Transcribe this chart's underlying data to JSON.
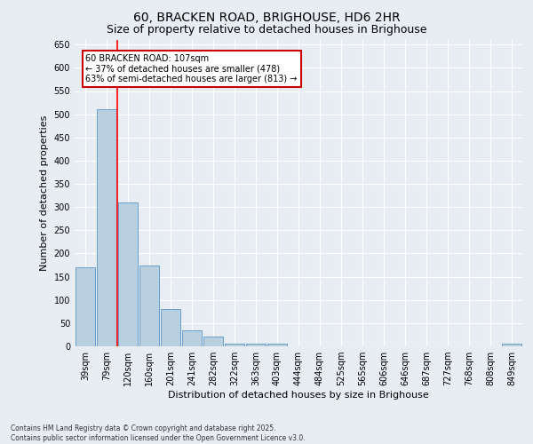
{
  "title1": "60, BRACKEN ROAD, BRIGHOUSE, HD6 2HR",
  "title2": "Size of property relative to detached houses in Brighouse",
  "xlabel": "Distribution of detached houses by size in Brighouse",
  "ylabel": "Number of detached properties",
  "categories": [
    "39sqm",
    "79sqm",
    "120sqm",
    "160sqm",
    "201sqm",
    "241sqm",
    "282sqm",
    "322sqm",
    "363sqm",
    "403sqm",
    "444sqm",
    "484sqm",
    "525sqm",
    "565sqm",
    "606sqm",
    "646sqm",
    "687sqm",
    "727sqm",
    "768sqm",
    "808sqm",
    "849sqm"
  ],
  "values": [
    170,
    510,
    310,
    175,
    80,
    35,
    22,
    5,
    5,
    5,
    0,
    0,
    0,
    0,
    0,
    0,
    0,
    0,
    0,
    0,
    5
  ],
  "bar_color": "#b8cfe0",
  "bar_edge_color": "#6a9fca",
  "background_color": "#e8edf4",
  "grid_color": "#ffffff",
  "red_line_x": 1.5,
  "annotation_text": "60 BRACKEN ROAD: 107sqm\n← 37% of detached houses are smaller (478)\n63% of semi-detached houses are larger (813) →",
  "annotation_box_color": "#ffffff",
  "annotation_box_edge": "#cc0000",
  "ylim": [
    0,
    660
  ],
  "yticks": [
    0,
    50,
    100,
    150,
    200,
    250,
    300,
    350,
    400,
    450,
    500,
    550,
    600,
    650
  ],
  "footer_line1": "Contains HM Land Registry data © Crown copyright and database right 2025.",
  "footer_line2": "Contains public sector information licensed under the Open Government Licence v3.0.",
  "title_fontsize": 10,
  "subtitle_fontsize": 9,
  "axis_label_fontsize": 8,
  "tick_fontsize": 7,
  "annot_fontsize": 7
}
